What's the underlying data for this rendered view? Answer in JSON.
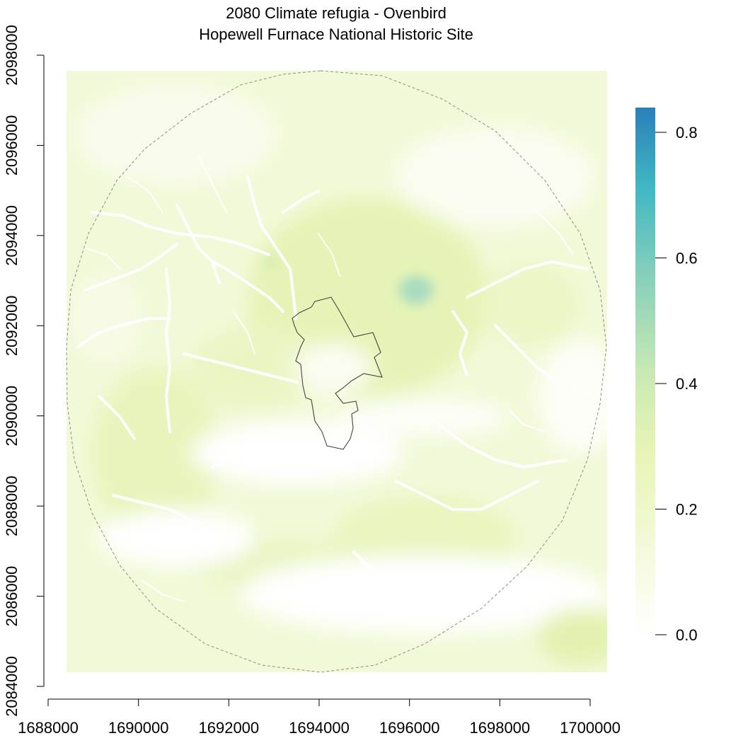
{
  "title_line1": "2080 Climate refugia - Ovenbird",
  "title_line2": "Hopewell Furnace National Historic Site",
  "x_axis": {
    "ticks": [
      "1688000",
      "1690000",
      "1692000",
      "1694000",
      "1696000",
      "1698000",
      "1700000"
    ]
  },
  "y_axis": {
    "ticks": [
      "2084000",
      "2086000",
      "2088000",
      "2090000",
      "2092000",
      "2094000",
      "2096000",
      "2098000"
    ]
  },
  "legend": {
    "labels": [
      "0.0",
      "0.2",
      "0.4",
      "0.6",
      "0.8"
    ],
    "colors": [
      "#ffffff",
      "#f4fadb",
      "#e8f4b4",
      "#c7e9b4",
      "#7fcdbb",
      "#41b6c4",
      "#2c7fb8"
    ]
  },
  "map_colors": {
    "low_green": "#eef7cf",
    "mid_green": "#e5f2b8",
    "teal_patch": "#9fd8c0",
    "buffer_outline": "#8c8c8c",
    "park_boundary": "#333333"
  }
}
